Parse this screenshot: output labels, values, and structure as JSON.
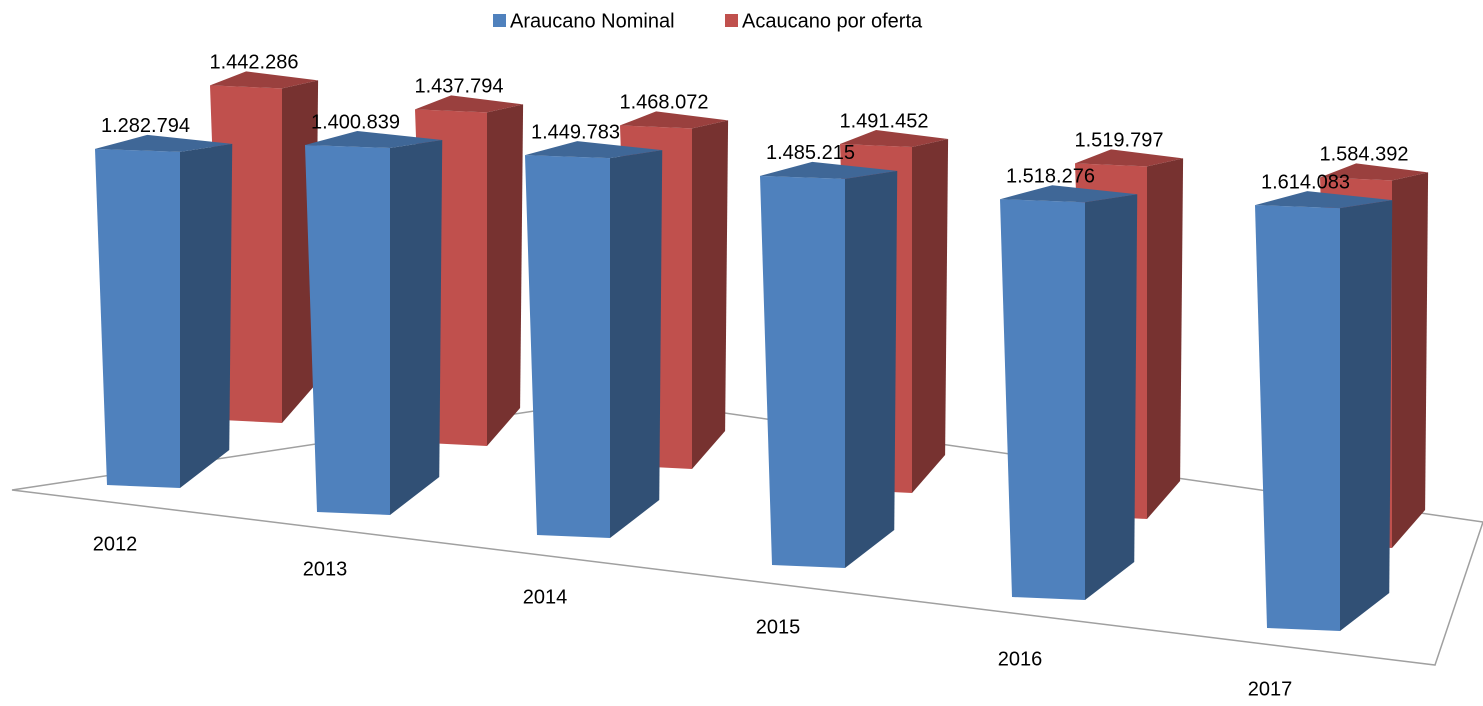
{
  "chart_data": {
    "type": "bar3d",
    "categories": [
      "2012",
      "2013",
      "2014",
      "2015",
      "2016",
      "2017"
    ],
    "series": [
      {
        "name": "Araucano Nominal",
        "color": "#4f81bd",
        "values": [
          1282794,
          1400839,
          1449783,
          1485215,
          1518276,
          1614083
        ],
        "value_labels": [
          "1.282.794",
          "1.400.839",
          "1.449.783",
          "1.485.215",
          "1.518.276",
          "1.614.083"
        ]
      },
      {
        "name": "Acaucano por oferta",
        "color": "#c0504d",
        "values": [
          1442286,
          1437794,
          1468072,
          1491452,
          1519797,
          1584392
        ],
        "value_labels": [
          "1.442.286",
          "1.437.794",
          "1.468.072",
          "1.491.452",
          "1.519.797",
          "1.584.392"
        ]
      }
    ],
    "legend": "top"
  }
}
